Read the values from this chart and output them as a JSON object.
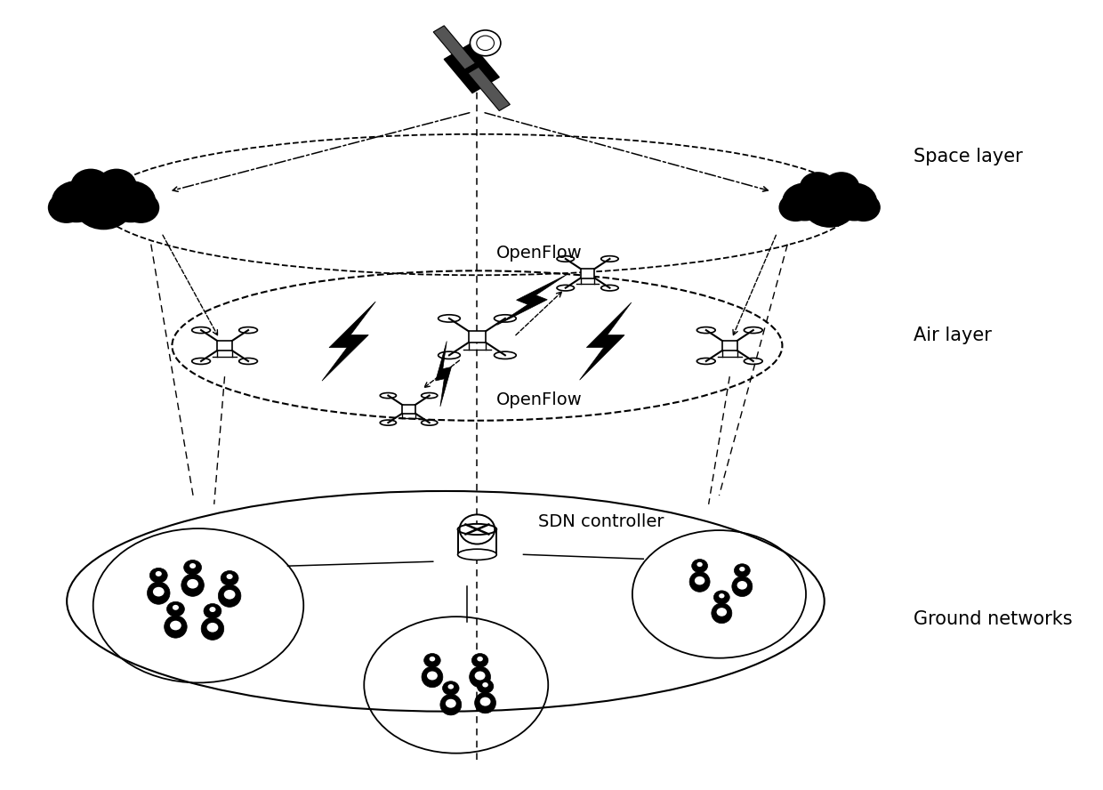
{
  "background_color": "#ffffff",
  "labels": {
    "space_layer": "Space layer",
    "air_layer": "Air layer",
    "ground_networks": "Ground networks",
    "openflow_top": "OpenFlow",
    "openflow_bottom": "OpenFlow",
    "sdn_controller": "SDN controller"
  },
  "figsize": [
    12.4,
    8.88
  ],
  "dpi": 100
}
